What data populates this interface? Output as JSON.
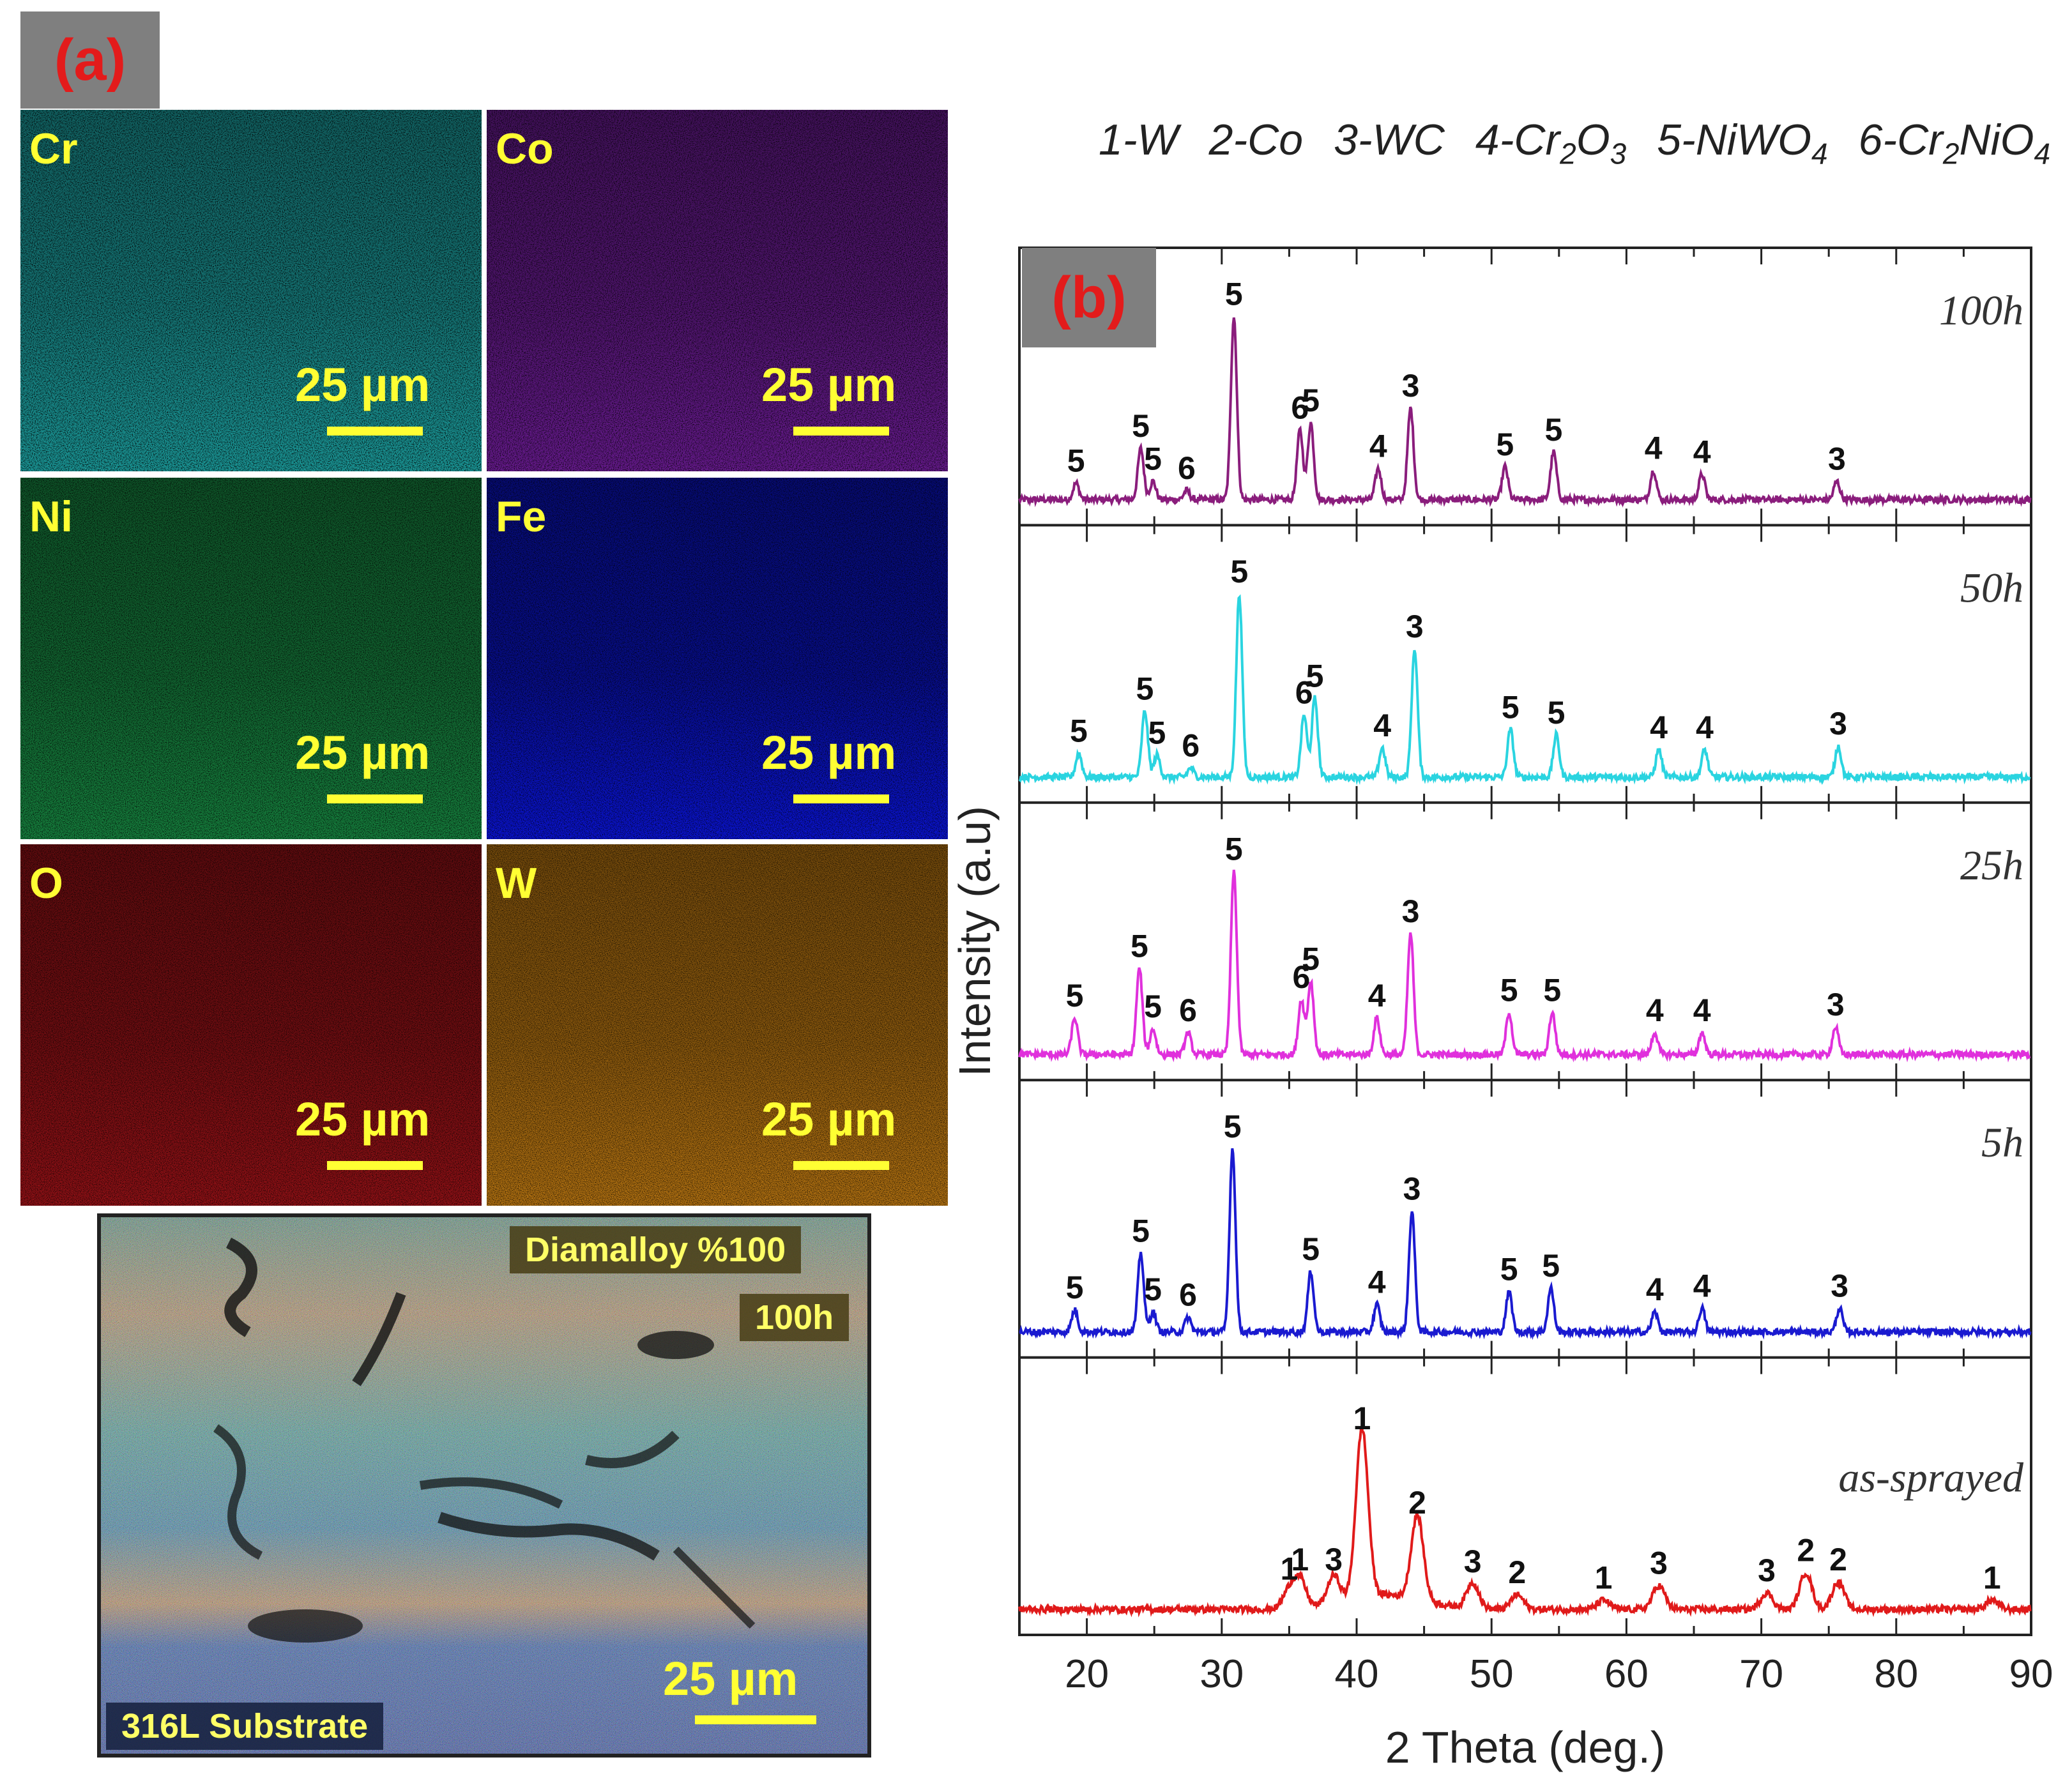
{
  "panel_a": {
    "badge": "(a)",
    "maps": [
      {
        "element": "Cr",
        "scale": "25 µm",
        "color": "#1fb3b3"
      },
      {
        "element": "Co",
        "scale": "25 µm",
        "color": "#7a1fa8"
      },
      {
        "element": "Ni",
        "scale": "25 µm",
        "color": "#1a9a4a"
      },
      {
        "element": "Fe",
        "scale": "25 µm",
        "color": "#0a14d8"
      },
      {
        "element": "O",
        "scale": "25 µm",
        "color": "#b0141a"
      },
      {
        "element": "W",
        "scale": "25 µm",
        "color": "#d98a14"
      }
    ],
    "composite": {
      "tag_top1": "Diamalloy %100",
      "tag_top2": "100h",
      "tag_bottom": "316L Substrate",
      "scale": "25 µm"
    }
  },
  "panel_b": {
    "badge": "(b)"
  },
  "legend": [
    {
      "num": "1",
      "name": "W",
      "sub": ""
    },
    {
      "num": "2",
      "name": "Co",
      "sub": ""
    },
    {
      "num": "3",
      "name": "WC",
      "sub": ""
    },
    {
      "num": "4",
      "name": "Cr",
      "sub": "2",
      "name2": "O",
      "sub2": "3"
    },
    {
      "num": "5",
      "name": "NiWO",
      "sub": "4"
    },
    {
      "num": "6",
      "name": "Cr",
      "sub": "2",
      "name2": "NiO",
      "sub2": "4"
    }
  ],
  "chart_data": {
    "type": "line",
    "title": "",
    "xlabel": "2 Theta (deg.)",
    "ylabel": "Intensity (a.u)",
    "xlim": [
      15,
      90
    ],
    "xticks": [
      20,
      30,
      40,
      50,
      60,
      70,
      80,
      90
    ],
    "series": [
      {
        "name": "100h",
        "color": "#8a1d7c",
        "peaks": [
          {
            "x": 19.2,
            "h": 0.09,
            "label": "5"
          },
          {
            "x": 24.0,
            "h": 0.28,
            "label": "5"
          },
          {
            "x": 24.9,
            "h": 0.1,
            "label": "5"
          },
          {
            "x": 27.4,
            "h": 0.05,
            "label": "6"
          },
          {
            "x": 30.9,
            "h": 1.0,
            "label": "5"
          },
          {
            "x": 35.8,
            "h": 0.38,
            "label": "6"
          },
          {
            "x": 36.6,
            "h": 0.42,
            "label": "5"
          },
          {
            "x": 41.6,
            "h": 0.17,
            "label": "4"
          },
          {
            "x": 44.0,
            "h": 0.5,
            "label": "3"
          },
          {
            "x": 51.0,
            "h": 0.18,
            "label": "5"
          },
          {
            "x": 54.6,
            "h": 0.26,
            "label": "5"
          },
          {
            "x": 62.0,
            "h": 0.16,
            "label": "4"
          },
          {
            "x": 65.6,
            "h": 0.14,
            "label": "4"
          },
          {
            "x": 75.6,
            "h": 0.1,
            "label": "3"
          }
        ]
      },
      {
        "name": "50h",
        "color": "#2ad4e0",
        "peaks": [
          {
            "x": 19.4,
            "h": 0.13,
            "label": "5"
          },
          {
            "x": 24.3,
            "h": 0.36,
            "label": "5"
          },
          {
            "x": 25.2,
            "h": 0.12,
            "label": "5"
          },
          {
            "x": 27.7,
            "h": 0.05,
            "label": "6"
          },
          {
            "x": 31.3,
            "h": 1.0,
            "label": "5"
          },
          {
            "x": 36.1,
            "h": 0.34,
            "label": "6"
          },
          {
            "x": 36.9,
            "h": 0.43,
            "label": "5"
          },
          {
            "x": 41.9,
            "h": 0.16,
            "label": "4"
          },
          {
            "x": 44.3,
            "h": 0.7,
            "label": "3"
          },
          {
            "x": 51.4,
            "h": 0.26,
            "label": "5"
          },
          {
            "x": 54.8,
            "h": 0.23,
            "label": "5"
          },
          {
            "x": 62.4,
            "h": 0.15,
            "label": "4"
          },
          {
            "x": 65.8,
            "h": 0.15,
            "label": "4"
          },
          {
            "x": 75.7,
            "h": 0.17,
            "label": "3"
          }
        ]
      },
      {
        "name": "25h",
        "color": "#e030dc",
        "peaks": [
          {
            "x": 19.1,
            "h": 0.2,
            "label": "5"
          },
          {
            "x": 23.9,
            "h": 0.47,
            "label": "5"
          },
          {
            "x": 24.9,
            "h": 0.14,
            "label": "5"
          },
          {
            "x": 27.5,
            "h": 0.12,
            "label": "6"
          },
          {
            "x": 30.9,
            "h": 1.0,
            "label": "5"
          },
          {
            "x": 35.9,
            "h": 0.3,
            "label": "6"
          },
          {
            "x": 36.6,
            "h": 0.4,
            "label": "5"
          },
          {
            "x": 41.5,
            "h": 0.2,
            "label": "4"
          },
          {
            "x": 44.0,
            "h": 0.66,
            "label": "3"
          },
          {
            "x": 51.3,
            "h": 0.23,
            "label": "5"
          },
          {
            "x": 54.5,
            "h": 0.23,
            "label": "5"
          },
          {
            "x": 62.1,
            "h": 0.12,
            "label": "4"
          },
          {
            "x": 65.6,
            "h": 0.12,
            "label": "4"
          },
          {
            "x": 75.5,
            "h": 0.15,
            "label": "3"
          }
        ]
      },
      {
        "name": "5h",
        "color": "#1a1ad0",
        "peaks": [
          {
            "x": 19.1,
            "h": 0.12,
            "label": "5"
          },
          {
            "x": 24.0,
            "h": 0.43,
            "label": "5"
          },
          {
            "x": 24.9,
            "h": 0.11,
            "label": "5"
          },
          {
            "x": 27.5,
            "h": 0.08,
            "label": "6"
          },
          {
            "x": 30.8,
            "h": 1.0,
            "label": "5"
          },
          {
            "x": 36.6,
            "h": 0.33,
            "label": "5"
          },
          {
            "x": 41.5,
            "h": 0.15,
            "label": "4"
          },
          {
            "x": 44.1,
            "h": 0.66,
            "label": "3"
          },
          {
            "x": 51.3,
            "h": 0.22,
            "label": "5"
          },
          {
            "x": 54.4,
            "h": 0.24,
            "label": "5"
          },
          {
            "x": 62.1,
            "h": 0.11,
            "label": "4"
          },
          {
            "x": 65.6,
            "h": 0.13,
            "label": "4"
          },
          {
            "x": 75.8,
            "h": 0.13,
            "label": "3"
          }
        ]
      },
      {
        "name": "as-sprayed",
        "color": "#e01a1a",
        "peaks": [
          {
            "x": 35.0,
            "h": 0.1,
            "label": "1"
          },
          {
            "x": 35.8,
            "h": 0.15,
            "label": "1"
          },
          {
            "x": 38.3,
            "h": 0.15,
            "label": "3"
          },
          {
            "x": 40.4,
            "h": 0.92,
            "label": "1"
          },
          {
            "x": 44.5,
            "h": 0.46,
            "label": "2"
          },
          {
            "x": 48.6,
            "h": 0.14,
            "label": "3"
          },
          {
            "x": 51.9,
            "h": 0.08,
            "label": "2"
          },
          {
            "x": 58.3,
            "h": 0.05,
            "label": "1"
          },
          {
            "x": 62.4,
            "h": 0.13,
            "label": "3"
          },
          {
            "x": 70.4,
            "h": 0.09,
            "label": "3"
          },
          {
            "x": 73.3,
            "h": 0.2,
            "label": "2"
          },
          {
            "x": 75.7,
            "h": 0.15,
            "label": "2"
          },
          {
            "x": 87.1,
            "h": 0.05,
            "label": "1"
          }
        ]
      }
    ]
  }
}
